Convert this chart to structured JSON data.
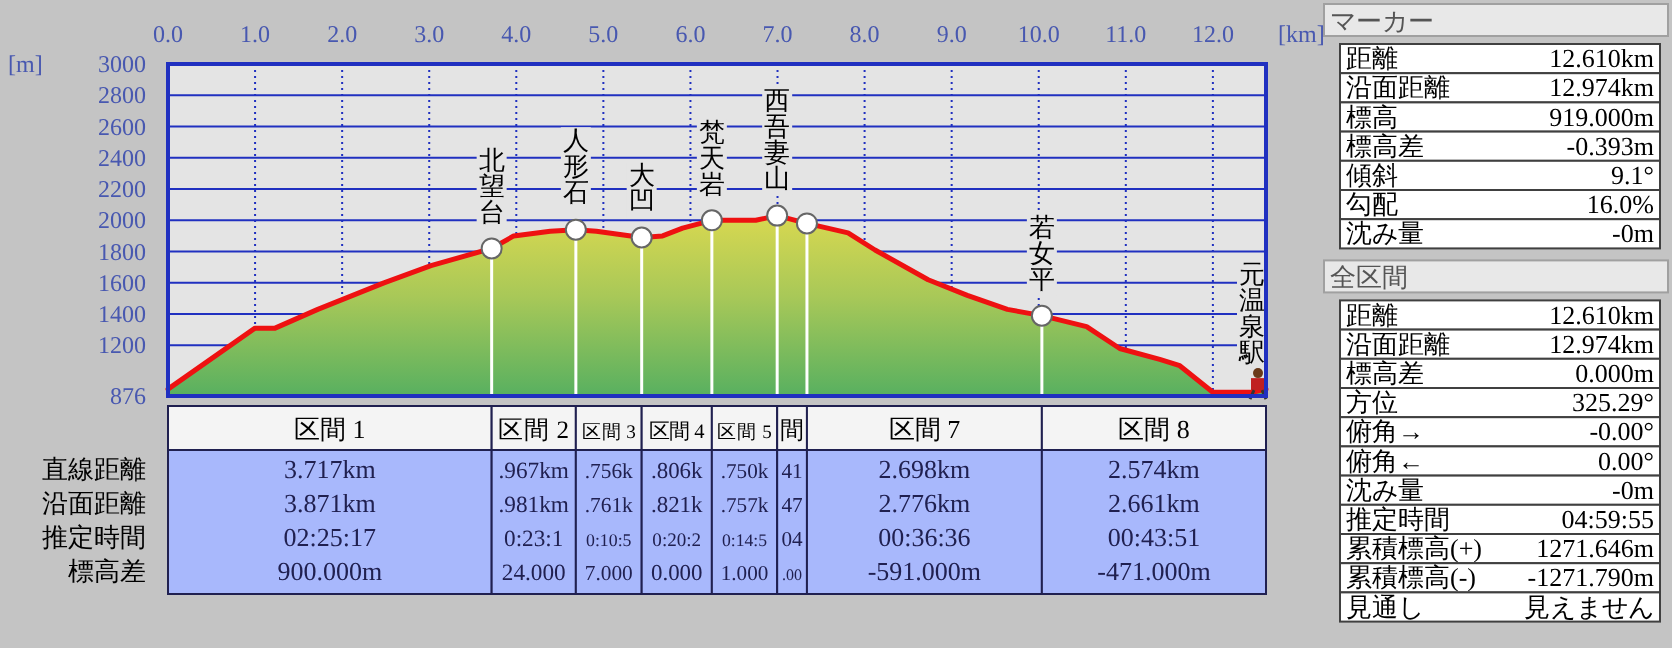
{
  "chart_data": [
    {
      "type": "area",
      "xlabel": "[km]",
      "ylabel": "[m]",
      "xlim": [
        0,
        12.61
      ],
      "ylim": [
        876,
        3000
      ],
      "xticks": [
        {
          "value": 0,
          "label": "0.0"
        },
        {
          "value": 1,
          "label": "1.0"
        },
        {
          "value": 2,
          "label": "2.0"
        },
        {
          "value": 3,
          "label": "3.0"
        },
        {
          "value": 4,
          "label": "4.0"
        },
        {
          "value": 5,
          "label": "5.0"
        },
        {
          "value": 6,
          "label": "6.0"
        },
        {
          "value": 7,
          "label": "7.0"
        },
        {
          "value": 8,
          "label": "8.0"
        },
        {
          "value": 9,
          "label": "9.0"
        },
        {
          "value": 10,
          "label": "10.0"
        },
        {
          "value": 11,
          "label": "11.0"
        },
        {
          "value": 12,
          "label": "12.0"
        }
      ],
      "yticks": [
        876,
        1200,
        1400,
        1600,
        1800,
        2000,
        2200,
        2400,
        2600,
        2800,
        3000
      ],
      "grid": true,
      "series": [
        {
          "type": "area",
          "color": "#ee1111",
          "x": [
            0,
            1.0,
            1.23,
            1.72,
            2.48,
            3.02,
            3.717,
            3.97,
            4.39,
            4.684,
            4.92,
            5.44,
            5.68,
            5.91,
            6.246,
            6.75,
            6.996,
            7.338,
            7.81,
            8.12,
            8.73,
            9.18,
            9.64,
            10.036,
            10.55,
            10.93,
            11.39,
            11.62,
            12.0,
            12.45,
            12.61
          ],
          "values": [
            920,
            1310,
            1310,
            1430,
            1600,
            1710,
            1820,
            1900,
            1930,
            1940,
            1930,
            1890,
            1900,
            1950,
            2000,
            2000,
            2030,
            1980,
            1920,
            1810,
            1620,
            1520,
            1430,
            1390,
            1320,
            1180,
            1110,
            1070,
            900,
            900,
            920
          ]
        },
        {
          "type": "lollipop",
          "color": "#ffffff",
          "marker": "circle",
          "x": [
            3.717,
            4.684,
            5.44,
            6.246,
            6.996,
            7.338,
            10.036
          ],
          "values": [
            1820,
            1940,
            1890,
            2000,
            2030,
            1980,
            1390
          ]
        }
      ],
      "annotations": [
        {
          "text": "北望台",
          "x": 3.717,
          "y": 1819
        },
        {
          "text": "人形石",
          "x": 4.684,
          "y": 1943
        },
        {
          "text": "大凹",
          "x": 5.44,
          "y": 1886
        },
        {
          "text": "梵天岩",
          "x": 6.246,
          "y": 1995
        },
        {
          "text": "西吾妻山",
          "x": 6.996,
          "y": 2035
        },
        {
          "text": "若女平",
          "x": 10.036,
          "y": 1390
        },
        {
          "text": "元温泉駅",
          "x": 12.61,
          "y": 919
        }
      ]
    },
    {
      "type": "other",
      "categories": [
        "区間 1",
        "区間 2",
        "区間 3",
        "区間 4",
        "区間 5",
        "間",
        "区間 7",
        "区間 8"
      ],
      "y_categories": [
        "直線距離",
        "沿面距離",
        "推定時間",
        "標高差"
      ],
      "cell_labels": [
        [
          "3.717km",
          ".967km",
          ".756k",
          ".806k",
          ".750k",
          "41",
          "2.698km",
          "2.574km"
        ],
        [
          "3.871km",
          ".981km",
          ".761k",
          ".821k",
          ".757k",
          "47",
          "2.776km",
          "2.661km"
        ],
        [
          "02:25:17",
          "0:23:1",
          "0:10:5",
          "0:20:2",
          "0:14:5",
          "04",
          "00:36:36",
          "00:43:51"
        ],
        [
          "900.000m",
          "24.000",
          "7.000",
          "0.000",
          "1.000",
          ".00",
          "-591.000m",
          "-471.000m"
        ]
      ]
    },
    {
      "type": "other",
      "title": "マーカー",
      "y_categories": [
        "距離",
        "沿面距離",
        "標高",
        "標高差",
        "傾斜",
        "勾配",
        "沈み量"
      ],
      "cell_labels": [
        [
          "12.610km"
        ],
        [
          "12.974km"
        ],
        [
          "919.000m"
        ],
        [
          "-0.393m"
        ],
        [
          "9.1°"
        ],
        [
          "16.0%"
        ],
        [
          "-0m"
        ]
      ]
    },
    {
      "type": "other",
      "title": "全区間",
      "y_categories": [
        "距離",
        "沿面距離",
        "標高差",
        "方位",
        "俯角→",
        "俯角←",
        "沈み量",
        "推定時間",
        "累積標高(+)",
        "累積標高(-)",
        "見通し"
      ],
      "cell_labels": [
        [
          "12.610km"
        ],
        [
          "12.974km"
        ],
        [
          "0.000m"
        ],
        [
          "325.29°"
        ],
        [
          "-0.00°"
        ],
        [
          "0.00°"
        ],
        [
          "-0m"
        ],
        [
          "04:59:55"
        ],
        [
          "1271.646m"
        ],
        [
          "-1271.790m"
        ],
        [
          "見えません"
        ]
      ]
    }
  ]
}
